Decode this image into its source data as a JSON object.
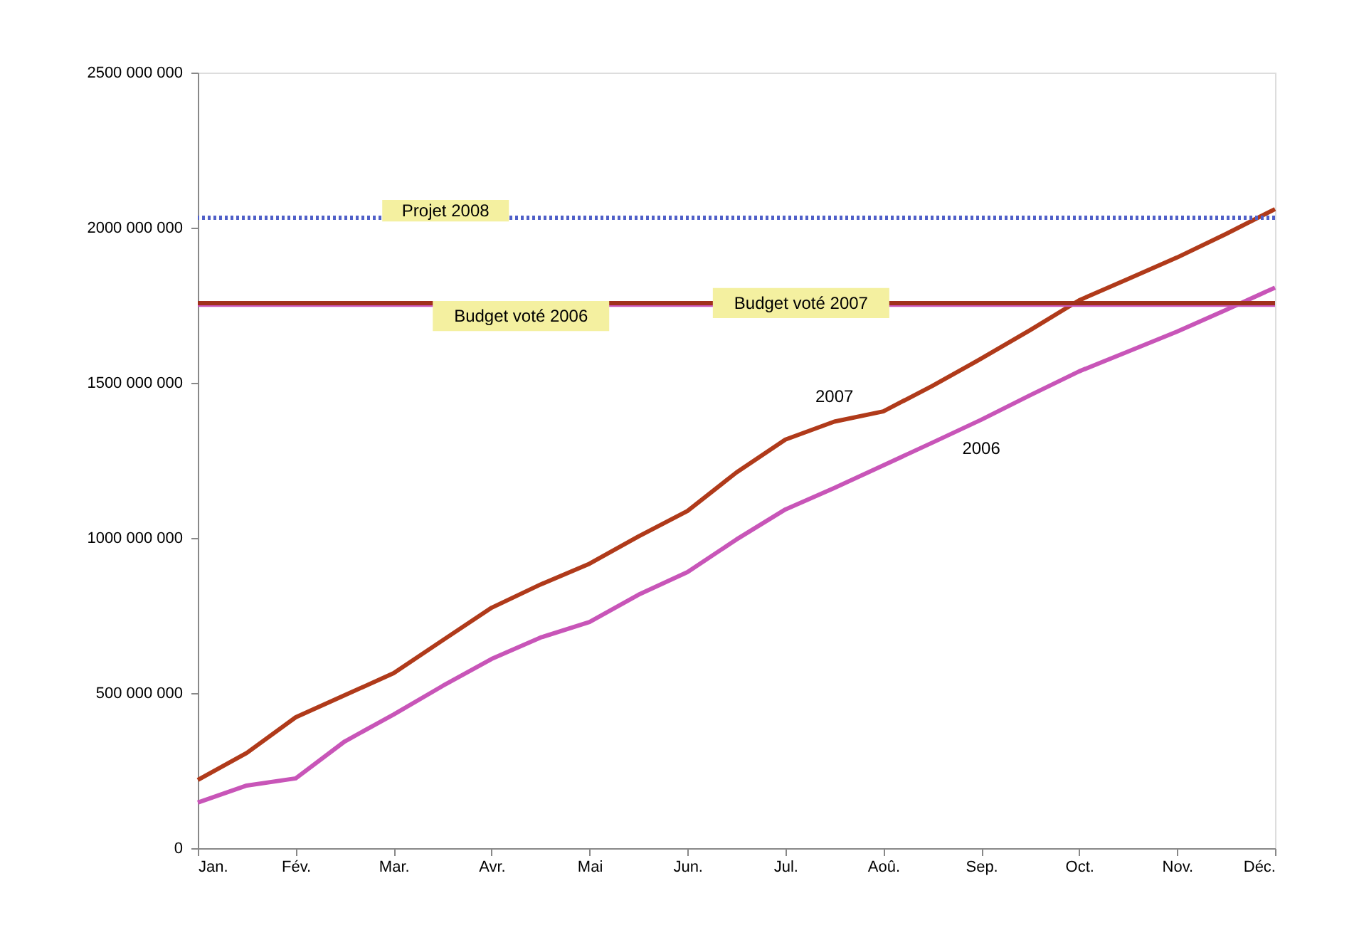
{
  "chart_data": {
    "type": "line",
    "categories": [
      "Jan.",
      null,
      "Fév.",
      null,
      "Mar.",
      null,
      "Avr.",
      null,
      "Mai",
      null,
      "Jun.",
      null,
      "Jul.",
      null,
      "Aoû.",
      null,
      "Sep.",
      null,
      "Oct.",
      null,
      "Nov.",
      null,
      "Déc."
    ],
    "ylim": [
      0,
      2500000000
    ],
    "yticks": [
      0,
      {
        "value": 500000000,
        "label": "500 000 000"
      },
      {
        "value": 1000000000,
        "label": "1000 000 000"
      },
      {
        "value": 1500000000,
        "label": "1500 000 000"
      },
      {
        "value": 2000000000,
        "label": "2000 000 000"
      },
      {
        "value": 2500000000,
        "label": "2500 000 000"
      }
    ],
    "grid": false,
    "marker": "none",
    "line_style": "solid",
    "series": [
      {
        "name": "2007",
        "color": "#b03a1a",
        "values": [
          220000000,
          307000000,
          422000000,
          493000000,
          564000000,
          670000000,
          775000000,
          850000000,
          917000000,
          1005000000,
          1087000000,
          1211000000,
          1317000000,
          1375000000,
          1408000000,
          1490000000,
          1578000000,
          1670000000,
          1766000000,
          1835000000,
          1904000000,
          1980000000,
          2060000000
        ]
      },
      {
        "name": "2006",
        "color": "#c855b8",
        "values": [
          147000000,
          202000000,
          225000000,
          344000000,
          431000000,
          523000000,
          610000000,
          679000000,
          729000000,
          817000000,
          890000000,
          995000000,
          1092000000,
          1161000000,
          1234000000,
          1307000000,
          1381000000,
          1460000000,
          1537000000,
          1601000000,
          1665000000,
          1735000000,
          1807000000
        ]
      }
    ],
    "ref_lines": [
      {
        "axis": "y",
        "value": 2032000000,
        "label": "Projet 2008",
        "color": "#5060c8",
        "line_style": "dotted"
      },
      {
        "axis": "y",
        "value": 1752000000,
        "label": "Budget voté 2006",
        "color": "#c855b8",
        "line_style": "solid"
      },
      {
        "axis": "y",
        "value": 1757000000,
        "label": "Budget voté 2007",
        "color": "#a0301c",
        "line_style": "solid"
      }
    ]
  }
}
